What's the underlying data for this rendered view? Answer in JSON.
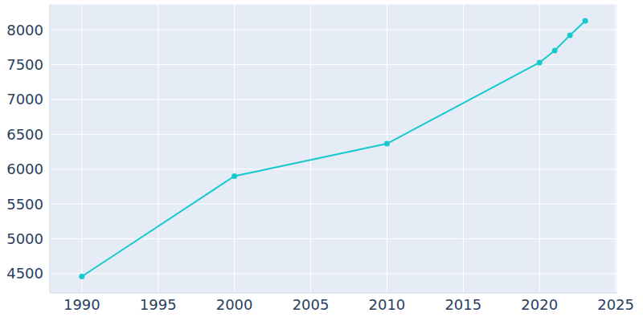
{
  "chart_data": {
    "type": "line",
    "x": [
      1990,
      2000,
      2010,
      2020,
      2021,
      2022,
      2023
    ],
    "values": [
      4460,
      5900,
      6365,
      7530,
      7703,
      7922,
      8129
    ],
    "color": "#17c9cf",
    "marker": "circle",
    "xlim": [
      1987.9,
      2025.1
    ],
    "xticks": [
      1990,
      1995,
      2000,
      2005,
      2010,
      2015,
      2020,
      2025
    ],
    "ylim": [
      4224,
      8370
    ],
    "yticks": [
      4500,
      5000,
      5500,
      6000,
      6500,
      7000,
      7500,
      8000
    ],
    "grid": true
  }
}
